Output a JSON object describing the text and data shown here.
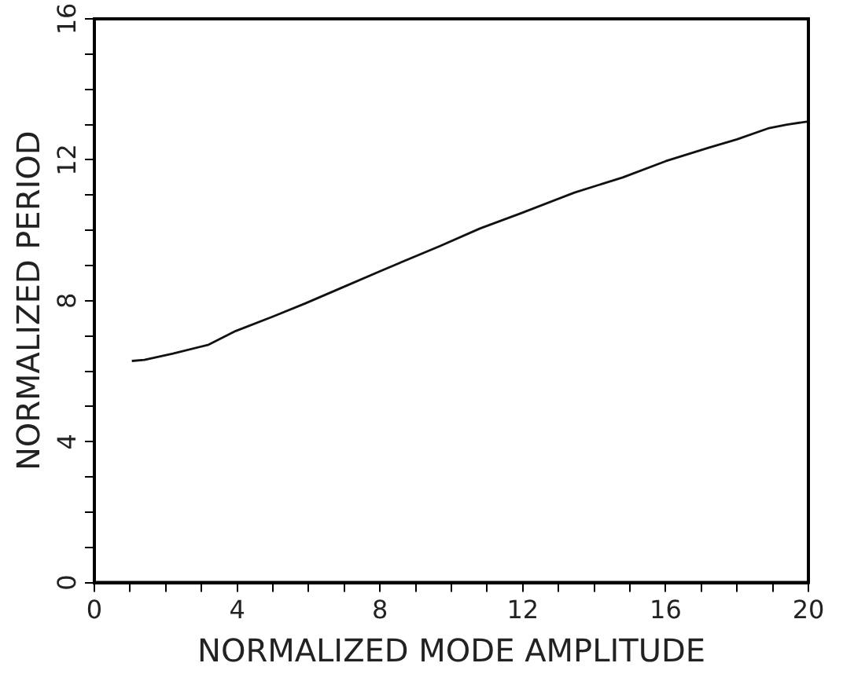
{
  "chart_data": {
    "type": "line",
    "xlabel": "NORMALIZED MODE AMPLITUDE",
    "ylabel": "NORMALIZED PERIOD",
    "x": [
      1.05,
      1.4,
      2.2,
      3.2,
      3.96,
      5.0,
      5.9,
      7.0,
      8.03,
      9.68,
      10.8,
      11.94,
      13.45,
      14.8,
      16.0,
      17.2,
      18.0,
      18.87,
      19.4,
      20.0
    ],
    "series": [
      {
        "color": "#111111",
        "values": [
          6.29,
          6.32,
          6.5,
          6.75,
          7.14,
          7.55,
          7.92,
          8.4,
          8.85,
          9.55,
          10.05,
          10.48,
          11.07,
          11.5,
          11.96,
          12.34,
          12.58,
          12.89,
          13.0,
          13.09
        ]
      }
    ],
    "xlim": [
      0,
      20
    ],
    "ylim": [
      0,
      16
    ],
    "xticks": [
      0,
      {
        "value": 1,
        "label": null
      },
      {
        "value": 2,
        "label": null
      },
      {
        "value": 3,
        "label": null
      },
      4,
      {
        "value": 5,
        "label": null
      },
      {
        "value": 6,
        "label": null
      },
      {
        "value": 7,
        "label": null
      },
      8,
      {
        "value": 9,
        "label": null
      },
      {
        "value": 10,
        "label": null
      },
      {
        "value": 11,
        "label": null
      },
      12,
      {
        "value": 13,
        "label": null
      },
      {
        "value": 14,
        "label": null
      },
      {
        "value": 15,
        "label": null
      },
      16,
      {
        "value": 17,
        "label": null
      },
      {
        "value": 18,
        "label": null
      },
      {
        "value": 19,
        "label": null
      },
      20
    ],
    "yticks": [
      0,
      {
        "value": 1,
        "label": null
      },
      {
        "value": 2,
        "label": null
      },
      {
        "value": 3,
        "label": null
      },
      4,
      {
        "value": 5,
        "label": null
      },
      {
        "value": 6,
        "label": null
      },
      {
        "value": 7,
        "label": null
      },
      8,
      {
        "value": 9,
        "label": null
      },
      {
        "value": 10,
        "label": null
      },
      {
        "value": 11,
        "label": null
      },
      12,
      {
        "value": 13,
        "label": null
      },
      {
        "value": 14,
        "label": null
      },
      {
        "value": 15,
        "label": null
      },
      16
    ],
    "grid": false,
    "legend": false,
    "marker": "none",
    "line_style": "solid"
  }
}
